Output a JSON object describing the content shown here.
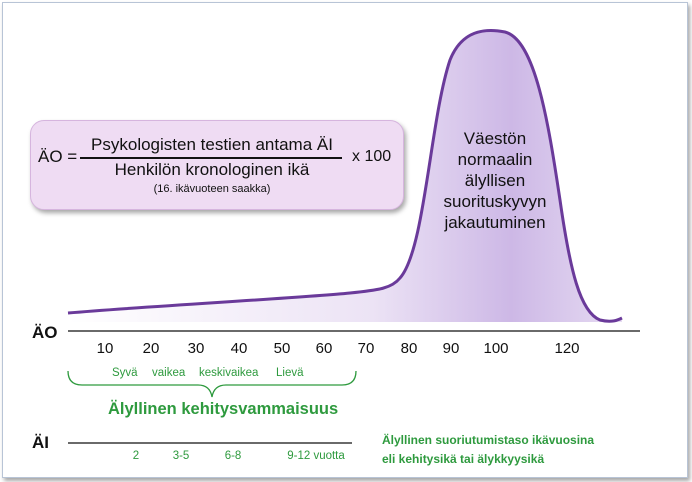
{
  "formula": {
    "lhs": "ÄO =",
    "numerator": "Psykologisten testien antama ÄI",
    "denominator": "Henkilön kronologinen ikä",
    "multiplier": "x 100",
    "note": "(16. ikävuoteen saakka)"
  },
  "curve_label": [
    "Väestön",
    "normaalin",
    "älyllisen",
    "suorituskyvyn",
    "jakautuminen"
  ],
  "axis_ao": {
    "label": "ÄO",
    "ticks": [
      "10",
      "20",
      "30",
      "40",
      "50",
      "60",
      "70",
      "80",
      "90",
      "100",
      "120"
    ]
  },
  "severity_levels": [
    "Syvä",
    "vaikea",
    "keskivaikea",
    "Lievä"
  ],
  "group_title": "Älyllinen kehitysvammaisuus",
  "axis_ai": {
    "label": "ÄI",
    "ages": [
      "2",
      "3-5",
      "6-8",
      "9-12 vuotta"
    ]
  },
  "side_note": {
    "line1": "Älyllinen suoriutumistaso ikävuosina",
    "line2": "eli kehitysikä tai älykkyysikä"
  },
  "colors": {
    "curve_stroke": "#6a3a9a",
    "curve_fill": "#d9c8ec",
    "box_fill": "#efdcf3",
    "green_text": "#2e9a3e"
  }
}
